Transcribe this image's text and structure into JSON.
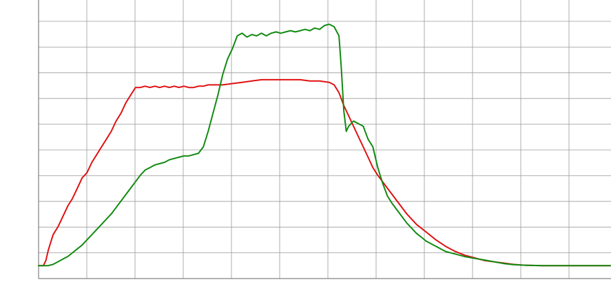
{
  "chart_data": {
    "type": "line",
    "title": "",
    "xlabel": "",
    "ylabel": "",
    "grid": true,
    "legend": "none",
    "xlim": [
      0,
      118
    ],
    "ylim": [
      -0.5,
      10.5
    ],
    "series": [
      {
        "color": "#e01010",
        "points": [
          [
            0,
            0
          ],
          [
            1,
            0
          ],
          [
            1.5,
            0.2
          ],
          [
            2,
            0.6
          ],
          [
            3,
            1.2
          ],
          [
            4,
            1.5
          ],
          [
            5,
            1.9
          ],
          [
            6,
            2.3
          ],
          [
            7,
            2.6
          ],
          [
            8,
            3.0
          ],
          [
            9,
            3.4
          ],
          [
            10,
            3.6
          ],
          [
            11,
            4.0
          ],
          [
            12,
            4.3
          ],
          [
            13,
            4.6
          ],
          [
            14,
            4.9
          ],
          [
            15,
            5.2
          ],
          [
            16,
            5.6
          ],
          [
            17,
            5.9
          ],
          [
            18,
            6.3
          ],
          [
            19,
            6.6
          ],
          [
            20,
            6.9
          ],
          [
            21,
            6.9
          ],
          [
            22,
            6.95
          ],
          [
            23,
            6.9
          ],
          [
            24,
            6.95
          ],
          [
            25,
            6.9
          ],
          [
            26,
            6.95
          ],
          [
            27,
            6.9
          ],
          [
            28,
            6.95
          ],
          [
            29,
            6.9
          ],
          [
            30,
            6.95
          ],
          [
            31,
            6.9
          ],
          [
            32,
            6.9
          ],
          [
            33,
            6.95
          ],
          [
            34,
            6.95
          ],
          [
            35,
            7.0
          ],
          [
            36,
            7.0
          ],
          [
            38,
            7.0
          ],
          [
            40,
            7.05
          ],
          [
            42,
            7.1
          ],
          [
            44,
            7.15
          ],
          [
            46,
            7.2
          ],
          [
            48,
            7.2
          ],
          [
            50,
            7.2
          ],
          [
            52,
            7.2
          ],
          [
            54,
            7.2
          ],
          [
            56,
            7.15
          ],
          [
            58,
            7.15
          ],
          [
            60,
            7.1
          ],
          [
            61,
            7.0
          ],
          [
            62,
            6.7
          ],
          [
            63,
            6.2
          ],
          [
            64,
            5.8
          ],
          [
            65,
            5.4
          ],
          [
            66,
            5.0
          ],
          [
            67,
            4.6
          ],
          [
            68,
            4.2
          ],
          [
            69,
            3.8
          ],
          [
            70,
            3.5
          ],
          [
            72,
            3.0
          ],
          [
            74,
            2.5
          ],
          [
            76,
            2.0
          ],
          [
            78,
            1.6
          ],
          [
            80,
            1.3
          ],
          [
            82,
            1.0
          ],
          [
            84,
            0.75
          ],
          [
            86,
            0.55
          ],
          [
            88,
            0.4
          ],
          [
            90,
            0.3
          ],
          [
            92,
            0.2
          ],
          [
            94,
            0.15
          ],
          [
            96,
            0.1
          ],
          [
            98,
            0.05
          ],
          [
            100,
            0.02
          ],
          [
            104,
            0
          ],
          [
            110,
            0
          ],
          [
            118,
            0
          ]
        ]
      },
      {
        "color": "#108a10",
        "points": [
          [
            0,
            0
          ],
          [
            1,
            0
          ],
          [
            2,
            0
          ],
          [
            3,
            0.05
          ],
          [
            4,
            0.15
          ],
          [
            5,
            0.25
          ],
          [
            6,
            0.35
          ],
          [
            7,
            0.5
          ],
          [
            8,
            0.65
          ],
          [
            9,
            0.8
          ],
          [
            10,
            1.0
          ],
          [
            11,
            1.2
          ],
          [
            12,
            1.4
          ],
          [
            13,
            1.6
          ],
          [
            14,
            1.8
          ],
          [
            15,
            2.0
          ],
          [
            16,
            2.25
          ],
          [
            17,
            2.5
          ],
          [
            18,
            2.75
          ],
          [
            19,
            3.0
          ],
          [
            20,
            3.25
          ],
          [
            21,
            3.5
          ],
          [
            22,
            3.7
          ],
          [
            23,
            3.8
          ],
          [
            24,
            3.9
          ],
          [
            25,
            3.95
          ],
          [
            26,
            4.0
          ],
          [
            27,
            4.1
          ],
          [
            28,
            4.15
          ],
          [
            29,
            4.2
          ],
          [
            30,
            4.25
          ],
          [
            31,
            4.25
          ],
          [
            32,
            4.3
          ],
          [
            33,
            4.35
          ],
          [
            34,
            4.6
          ],
          [
            35,
            5.2
          ],
          [
            36,
            5.9
          ],
          [
            37,
            6.6
          ],
          [
            38,
            7.4
          ],
          [
            39,
            8.0
          ],
          [
            40,
            8.4
          ],
          [
            41,
            8.9
          ],
          [
            42,
            9.0
          ],
          [
            43,
            8.85
          ],
          [
            44,
            8.95
          ],
          [
            45,
            8.9
          ],
          [
            46,
            9.0
          ],
          [
            47,
            8.9
          ],
          [
            48,
            9.0
          ],
          [
            49,
            9.05
          ],
          [
            50,
            9.0
          ],
          [
            51,
            9.05
          ],
          [
            52,
            9.1
          ],
          [
            53,
            9.05
          ],
          [
            54,
            9.1
          ],
          [
            55,
            9.15
          ],
          [
            56,
            9.1
          ],
          [
            57,
            9.2
          ],
          [
            58,
            9.15
          ],
          [
            59,
            9.3
          ],
          [
            60,
            9.35
          ],
          [
            61,
            9.25
          ],
          [
            62,
            8.9
          ],
          [
            62.5,
            7.6
          ],
          [
            63,
            6.0
          ],
          [
            63.5,
            5.2
          ],
          [
            64,
            5.4
          ],
          [
            65,
            5.6
          ],
          [
            66,
            5.5
          ],
          [
            67,
            5.4
          ],
          [
            68,
            4.9
          ],
          [
            69,
            4.6
          ],
          [
            70,
            3.8
          ],
          [
            71,
            3.2
          ],
          [
            72,
            2.7
          ],
          [
            73,
            2.4
          ],
          [
            74,
            2.15
          ],
          [
            75,
            1.9
          ],
          [
            76,
            1.65
          ],
          [
            77,
            1.45
          ],
          [
            78,
            1.25
          ],
          [
            79,
            1.1
          ],
          [
            80,
            0.95
          ],
          [
            82,
            0.75
          ],
          [
            84,
            0.55
          ],
          [
            86,
            0.45
          ],
          [
            88,
            0.35
          ],
          [
            90,
            0.28
          ],
          [
            92,
            0.22
          ],
          [
            94,
            0.15
          ],
          [
            96,
            0.08
          ],
          [
            98,
            0.04
          ],
          [
            100,
            0.02
          ],
          [
            104,
            0
          ],
          [
            110,
            0
          ],
          [
            118,
            0
          ]
        ]
      }
    ]
  }
}
